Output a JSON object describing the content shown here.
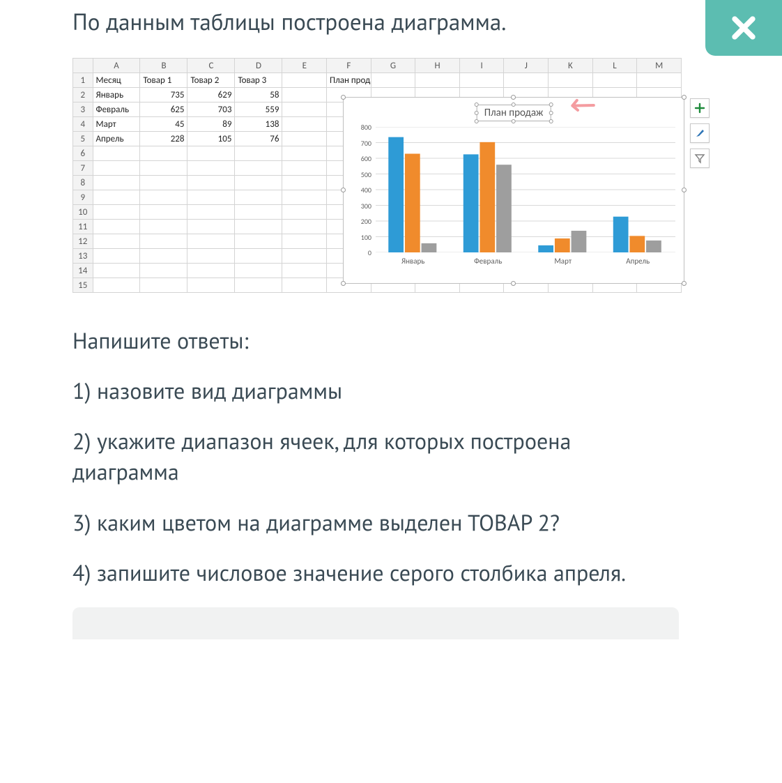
{
  "heading": "По данным таблицы построена диаграмма.",
  "close_button": {
    "color": "#5cbdb1",
    "icon_color": "#ffffff"
  },
  "spreadsheet": {
    "columns": [
      "A",
      "B",
      "C",
      "D",
      "E",
      "F",
      "G",
      "H",
      "I",
      "J",
      "K",
      "L",
      "M"
    ],
    "row_count": 15,
    "header_bg": "#f3f3f3",
    "gridline_color": "#d4d4d4",
    "cells": {
      "A1": "Месяц",
      "B1": "Товар 1",
      "C1": "Товар 2",
      "D1": "Товар 3",
      "F1": "План продаж",
      "A2": "Январь",
      "B2": 735,
      "C2": 629,
      "D2": 58,
      "A3": "Февраль",
      "B3": 625,
      "C3": 703,
      "D3": 559,
      "A4": "Март",
      "B4": 45,
      "C4": 89,
      "D4": 138,
      "A5": "Апрель",
      "B5": 228,
      "C5": 105,
      "D5": 76
    }
  },
  "chart": {
    "type": "bar",
    "title": "План продаж",
    "title_fontsize": 15,
    "categories": [
      "Январь",
      "Февраль",
      "Март",
      "Апрель"
    ],
    "series": [
      {
        "name": "Товар 1",
        "color": "#2e9bd6",
        "values": [
          735,
          625,
          45,
          228
        ]
      },
      {
        "name": "Товар 2",
        "color": "#f08b2c",
        "values": [
          629,
          703,
          89,
          105
        ]
      },
      {
        "name": "Товар 3",
        "color": "#9e9e9e",
        "values": [
          58,
          559,
          138,
          76
        ]
      }
    ],
    "ylim": [
      0,
      800
    ],
    "ytick_step": 100,
    "grid_color": "#d9d9d9",
    "axis_label_color": "#606060",
    "axis_label_fontsize": 10,
    "bar_width": 0.22,
    "background_color": "#ffffff",
    "border_color": "#bfbfbf",
    "arrow_color": "#f49ca0"
  },
  "chart_tools": {
    "plus_color": "#1e8a3b",
    "brush_color": "#2e75b6",
    "funnel_color": "#808080"
  },
  "questions": {
    "intro": "Напишите ответы:",
    "q1": "1) назовите вид диаграммы",
    "q2": "2) укажите диапазон ячеек, для которых построена диаграмма",
    "q3": "3) каким цветом на диаграмме выделен ТОВАР 2?",
    "q4": "4) запишите числовое значение серого столбика апреля."
  },
  "answer_box_bg": "#f1f2f2"
}
